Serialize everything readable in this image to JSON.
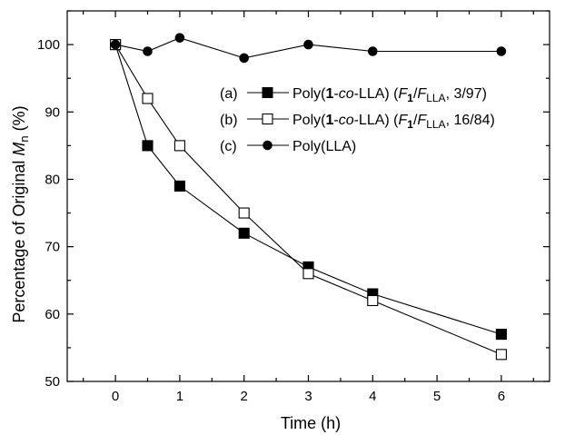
{
  "chart_data": {
    "type": "line",
    "xlabel": "Time (h)",
    "ylabel": {
      "prefix": "Percentage of Original ",
      "symbol": "M",
      "subscript": "n",
      "suffix": " (%)"
    },
    "xlim": [
      -0.75,
      6.75
    ],
    "ylim": [
      50,
      105
    ],
    "x_ticks": [
      0,
      1,
      2,
      3,
      4,
      5,
      6
    ],
    "y_ticks": [
      50,
      60,
      70,
      80,
      90,
      100
    ],
    "grid": false,
    "legend_position": "top-right",
    "series": [
      {
        "id": "a",
        "marker": "filled-square",
        "legend": {
          "tag": "(a)",
          "pre": "Poly(",
          "bold": "1",
          "dash": "-",
          "italic_co": "co",
          "post": "-LLA) (",
          "f1": "F",
          "f1_sub": "1",
          "slash": "/",
          "f2": "F",
          "f2_sub": "LLA",
          "ratio": ", 3/97)"
        },
        "x": [
          0,
          0.5,
          1,
          2,
          3,
          4,
          6
        ],
        "y": [
          100,
          85,
          79,
          72,
          67,
          63,
          57
        ]
      },
      {
        "id": "b",
        "marker": "open-square",
        "legend": {
          "tag": "(b)",
          "pre": "Poly(",
          "bold": "1",
          "dash": "-",
          "italic_co": "co",
          "post": "-LLA) (",
          "f1": "F",
          "f1_sub": "1",
          "slash": "/",
          "f2": "F",
          "f2_sub": "LLA",
          "ratio": ", 16/84)"
        },
        "x": [
          0,
          0.5,
          1,
          2,
          3,
          4,
          6
        ],
        "y": [
          100,
          92,
          85,
          75,
          66,
          62,
          54
        ]
      },
      {
        "id": "c",
        "marker": "filled-circle",
        "legend": {
          "tag": "(c)",
          "pre": "Poly(LLA)"
        },
        "x": [
          0,
          0.5,
          1,
          2,
          3,
          4,
          6
        ],
        "y": [
          100,
          99,
          101,
          98,
          100,
          99,
          99
        ]
      }
    ]
  }
}
